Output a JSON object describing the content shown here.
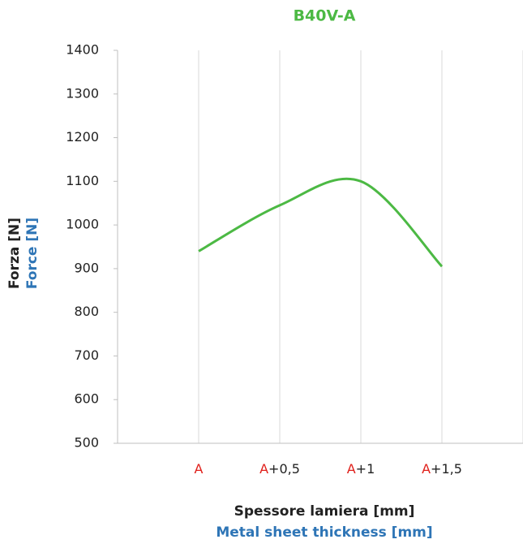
{
  "chart_data": {
    "type": "line",
    "title": "B40V-A",
    "y_label": "Forza [N]",
    "y_label_en": "Force [N]",
    "x_label": "Spessore lamiera [mm]",
    "x_label_en": "Metal sheet thickness [mm]",
    "categories": [
      "A",
      "A+0,5",
      "A+1",
      "A+1,5"
    ],
    "series": [
      {
        "name": "B40V-A",
        "color": "#4cb944",
        "values": [
          940,
          1045,
          1100,
          905
        ]
      }
    ],
    "ylim": [
      500,
      1400
    ],
    "yticks": [
      500,
      600,
      700,
      800,
      900,
      1000,
      1100,
      1200,
      1300,
      1400
    ],
    "grid": "x"
  }
}
